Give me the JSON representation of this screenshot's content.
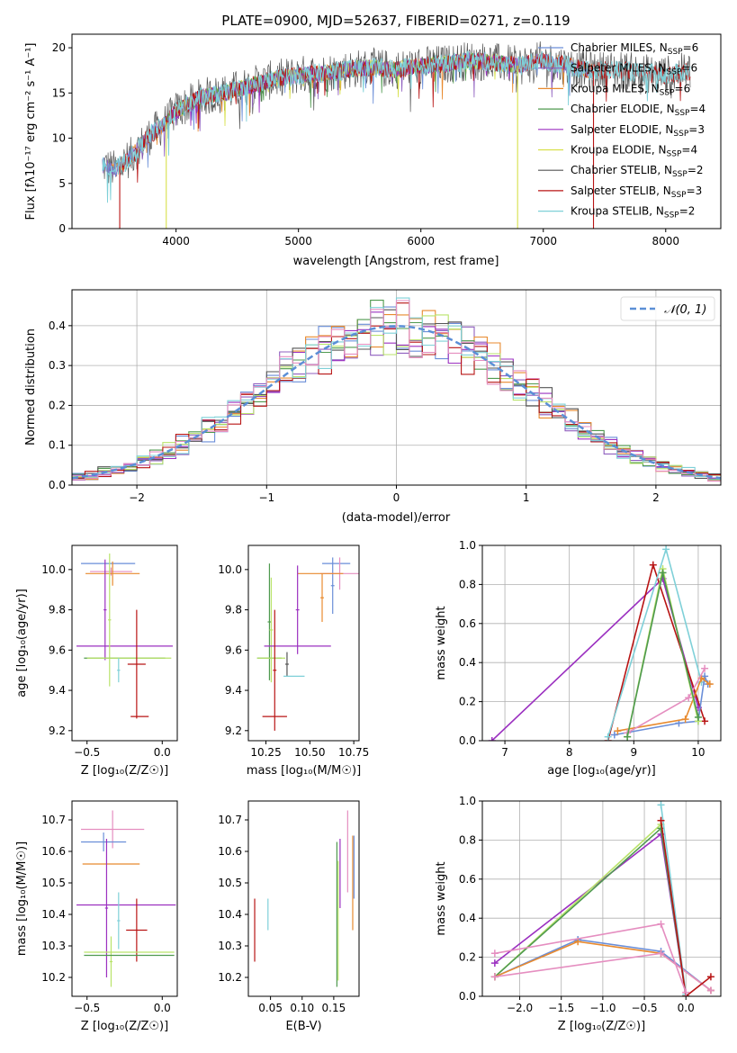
{
  "colors": {
    "chabrier_miles": "#6a8ed8",
    "salpeter_miles": "#8f5fbf",
    "kroupa_miles": "#e88a2e",
    "chabrier_elodie": "#4f9a4f",
    "salpeter_elodie": "#9b30c0",
    "kroupa_elodie": "#d7e04a",
    "chabrier_stelib": "#555555",
    "salpeter_stelib": "#b81414",
    "kroupa_stelib": "#7fd0d8",
    "gauss": "#5b8fd6",
    "pink": "#e58ec0",
    "lime": "#b9e36a"
  },
  "chart_data": [
    {
      "id": "spectrum",
      "type": "line",
      "title": "PLATE=0900, MJD=52637, FIBERID=0271, z=0.119",
      "xlabel": "wavelength [Angstrom, rest frame]",
      "ylabel": "Flux [fλ10⁻¹⁷ erg cm⁻² s⁻¹ A⁻¹]",
      "xlim": [
        3150,
        8450
      ],
      "ylim": [
        0,
        21.5
      ],
      "xticks": [
        4000,
        5000,
        6000,
        7000,
        8000
      ],
      "yticks": [
        0,
        5,
        10,
        15,
        20
      ],
      "legend": "upper right",
      "legend_entries": [
        {
          "label": "Chabrier MILES, N",
          "sub": "SSP",
          "suffix": "=6",
          "color_key": "chabrier_miles"
        },
        {
          "label": "Salpeter MILES, N",
          "sub": "SSP",
          "suffix": "=6",
          "color_key": "salpeter_miles"
        },
        {
          "label": "Kroupa MILES, N",
          "sub": "SSP",
          "suffix": "=6",
          "color_key": "kroupa_miles"
        },
        {
          "label": "Chabrier ELODIE, N",
          "sub": "SSP",
          "suffix": "=4",
          "color_key": "chabrier_elodie"
        },
        {
          "label": "Salpeter ELODIE, N",
          "sub": "SSP",
          "suffix": "=3",
          "color_key": "salpeter_elodie"
        },
        {
          "label": "Kroupa ELODIE, N",
          "sub": "SSP",
          "suffix": "=4",
          "color_key": "kroupa_elodie"
        },
        {
          "label": "Chabrier STELIB, N",
          "sub": "SSP",
          "suffix": "=2",
          "color_key": "chabrier_stelib"
        },
        {
          "label": "Salpeter STELIB, N",
          "sub": "SSP",
          "suffix": "=3",
          "color_key": "salpeter_stelib"
        },
        {
          "label": "Kroupa STELIB, N",
          "sub": "SSP",
          "suffix": "=2",
          "color_key": "kroupa_stelib"
        }
      ],
      "series_trend": {
        "x": [
          3400,
          3500,
          3600,
          3700,
          3800,
          3900,
          4000,
          4200,
          4400,
          4600,
          4800,
          5000,
          5200,
          5400,
          5600,
          5800,
          6000,
          6200,
          6400,
          6600,
          6800,
          7000,
          7200,
          7400,
          7600,
          7800,
          8000,
          8200
        ],
        "y": [
          7.0,
          6.5,
          7.5,
          9.0,
          10.5,
          11.5,
          13.0,
          14.5,
          15.0,
          15.8,
          16.5,
          17.0,
          17.2,
          17.6,
          17.8,
          17.6,
          18.0,
          18.2,
          18.6,
          18.4,
          18.0,
          18.6,
          18.0,
          17.4,
          17.6,
          17.2,
          17.0,
          17.4
        ]
      },
      "spikes": [
        {
          "x": 3540,
          "color_key": "salpeter_stelib"
        },
        {
          "x": 3920,
          "color_key": "kroupa_elodie"
        },
        {
          "x": 6790,
          "color_key": "kroupa_elodie"
        },
        {
          "x": 7410,
          "color_key": "salpeter_stelib"
        }
      ]
    },
    {
      "id": "residuals",
      "type": "step",
      "xlabel": "(data-model)/error",
      "ylabel": "Normed distribution",
      "xlim": [
        -2.5,
        2.5
      ],
      "ylim": [
        0,
        0.49
      ],
      "xticks": [
        -2,
        -1,
        0,
        1,
        2
      ],
      "xtick_labels": [
        "−2",
        "−1",
        "0",
        "1",
        "2"
      ],
      "yticks": [
        0.0,
        0.1,
        0.2,
        0.3,
        0.4
      ],
      "ytick_labels": [
        "0.0",
        "0.1",
        "0.2",
        "0.3",
        "0.4"
      ],
      "grid": true,
      "legend": "upper right",
      "legend_label": "𝒩(0, 1)",
      "bin_width": 0.1,
      "series_color_keys": [
        "chabrier_miles",
        "salpeter_miles",
        "kroupa_miles",
        "chabrier_elodie",
        "salpeter_elodie",
        "lime",
        "chabrier_stelib",
        "salpeter_stelib",
        "kroupa_stelib",
        "pink"
      ]
    },
    {
      "id": "age_vs_Z",
      "type": "errorbar",
      "xlabel": "Z [log₁₀(Z/Z☉)]",
      "ylabel": "age  [log₁₀(age/yr)]",
      "xlim": [
        -0.6,
        0.1
      ],
      "ylim": [
        9.15,
        10.12
      ],
      "xticks": [
        -0.5,
        0.0
      ],
      "xtick_labels": [
        "−0.5",
        "0.0"
      ],
      "yticks": [
        9.2,
        9.4,
        9.6,
        9.8,
        10.0
      ],
      "ytick_labels": [
        "9.2",
        "9.4",
        "9.6",
        "9.8",
        "10.0"
      ],
      "points": [
        {
          "x": -0.36,
          "xerr": 0.18,
          "y": 10.03,
          "yerr": 0.0,
          "color_key": "chabrier_miles"
        },
        {
          "x": -0.34,
          "xerr": 0.14,
          "y": 9.99,
          "yerr": 0.02,
          "color_key": "pink"
        },
        {
          "x": -0.33,
          "xerr": 0.18,
          "y": 9.98,
          "yerr": 0.06,
          "color_key": "kroupa_miles"
        },
        {
          "x": -0.38,
          "xerr": 0.01,
          "y": 9.8,
          "yerr": 0.25,
          "color_key": "salpeter_elodie"
        },
        {
          "x": -0.25,
          "xerr": 0.32,
          "y": 9.62,
          "yerr": 0.0,
          "color_key": "salpeter_elodie"
        },
        {
          "x": -0.35,
          "xerr": 0.01,
          "y": 9.75,
          "yerr": 0.33,
          "color_key": "lime"
        },
        {
          "x": -0.25,
          "xerr": 0.27,
          "y": 9.56,
          "yerr": 0.0,
          "color_key": "chabrier_elodie"
        },
        {
          "x": -0.22,
          "xerr": 0.28,
          "y": 9.56,
          "yerr": 0.0,
          "color_key": "lime"
        },
        {
          "x": -0.29,
          "xerr": 0.01,
          "y": 9.5,
          "yerr": 0.06,
          "color_key": "kroupa_stelib"
        },
        {
          "x": -0.17,
          "xerr": 0.06,
          "y": 9.53,
          "yerr": 0.27,
          "color_key": "salpeter_stelib"
        },
        {
          "x": -0.15,
          "xerr": 0.06,
          "y": 9.27,
          "yerr": 0.0,
          "color_key": "salpeter_stelib"
        }
      ]
    },
    {
      "id": "age_vs_mass",
      "type": "errorbar",
      "xlabel": "mass [log₁₀(M/M☉)]",
      "ylabel": "",
      "xlim": [
        10.15,
        10.78
      ],
      "ylim": [
        9.15,
        10.12
      ],
      "xticks": [
        10.25,
        10.5,
        10.75
      ],
      "xtick_labels": [
        "10.25",
        "10.50",
        "10.75"
      ],
      "yticks": [
        9.2,
        9.4,
        9.6,
        9.8,
        10.0
      ],
      "ytick_labels": [
        "9.2",
        "9.4",
        "9.6",
        "9.8",
        "10.0"
      ],
      "points": [
        {
          "x": 10.65,
          "xerr": 0.08,
          "y": 10.03,
          "yerr": 0.0,
          "color_key": "chabrier_miles"
        },
        {
          "x": 10.63,
          "xerr": 0.01,
          "y": 9.92,
          "yerr": 0.14,
          "color_key": "chabrier_miles"
        },
        {
          "x": 10.67,
          "xerr": 0.11,
          "y": 9.98,
          "yerr": 0.08,
          "color_key": "pink"
        },
        {
          "x": 10.56,
          "xerr": 0.13,
          "y": 9.98,
          "yerr": 0.0,
          "color_key": "kroupa_miles"
        },
        {
          "x": 10.57,
          "xerr": 0.01,
          "y": 9.86,
          "yerr": 0.12,
          "color_key": "kroupa_miles"
        },
        {
          "x": 10.27,
          "xerr": 0.01,
          "y": 9.74,
          "yerr": 0.29,
          "color_key": "chabrier_elodie"
        },
        {
          "x": 10.28,
          "xerr": 0.01,
          "y": 9.7,
          "yerr": 0.26,
          "color_key": "lime"
        },
        {
          "x": 10.43,
          "xerr": 0.01,
          "y": 9.8,
          "yerr": 0.22,
          "color_key": "salpeter_elodie"
        },
        {
          "x": 10.43,
          "xerr": 0.19,
          "y": 9.62,
          "yerr": 0.0,
          "color_key": "salpeter_elodie"
        },
        {
          "x": 10.27,
          "xerr": 0.07,
          "y": 9.56,
          "yerr": 0.0,
          "color_key": "chabrier_elodie"
        },
        {
          "x": 10.28,
          "xerr": 0.08,
          "y": 9.56,
          "yerr": 0.0,
          "color_key": "lime"
        },
        {
          "x": 10.37,
          "xerr": 0.01,
          "y": 9.53,
          "yerr": 0.06,
          "color_key": "chabrier_stelib"
        },
        {
          "x": 10.41,
          "xerr": 0.06,
          "y": 9.47,
          "yerr": 0.0,
          "color_key": "kroupa_stelib"
        },
        {
          "x": 10.3,
          "xerr": 0.01,
          "y": 9.5,
          "yerr": 0.3,
          "color_key": "salpeter_stelib"
        },
        {
          "x": 10.3,
          "xerr": 0.07,
          "y": 9.27,
          "yerr": 0.0,
          "color_key": "salpeter_stelib"
        }
      ]
    },
    {
      "id": "weight_vs_age",
      "type": "line",
      "xlabel": "age  [log₁₀(age/yr)]",
      "ylabel": "mass weight",
      "xlim": [
        6.65,
        10.35
      ],
      "ylim": [
        0,
        1.0
      ],
      "xticks": [
        7,
        8,
        9,
        10
      ],
      "xtick_labels": [
        "7",
        "8",
        "9",
        "10"
      ],
      "yticks": [
        0.0,
        0.2,
        0.4,
        0.6,
        0.8,
        1.0
      ],
      "ytick_labels": [
        "0.0",
        "0.2",
        "0.4",
        "0.6",
        "0.8",
        "1.0"
      ],
      "grid": true,
      "series": [
        {
          "color_key": "salpeter_elodie",
          "x": [
            6.8,
            9.45,
            10.0
          ],
          "y": [
            0.0,
            0.83,
            0.17
          ]
        },
        {
          "color_key": "salpeter_stelib",
          "x": [
            8.6,
            9.3,
            10.1
          ],
          "y": [
            0.0,
            0.9,
            0.1
          ]
        },
        {
          "color_key": "kroupa_stelib",
          "x": [
            8.6,
            9.5,
            10.05
          ],
          "y": [
            0.02,
            0.98,
            0.3
          ]
        },
        {
          "color_key": "chabrier_miles",
          "x": [
            8.7,
            9.7,
            10.0,
            10.1,
            10.15
          ],
          "y": [
            0.03,
            0.09,
            0.1,
            0.33,
            0.29
          ]
        },
        {
          "color_key": "kroupa_miles",
          "x": [
            8.75,
            9.8,
            10.05,
            10.18
          ],
          "y": [
            0.05,
            0.11,
            0.32,
            0.29
          ]
        },
        {
          "color_key": "pink",
          "x": [
            8.9,
            9.85,
            10.1
          ],
          "y": [
            0.04,
            0.22,
            0.37
          ]
        },
        {
          "color_key": "lime",
          "x": [
            8.9,
            9.45,
            10.0
          ],
          "y": [
            0.02,
            0.88,
            0.1
          ]
        },
        {
          "color_key": "chabrier_elodie",
          "x": [
            8.9,
            9.45,
            10.0
          ],
          "y": [
            0.02,
            0.86,
            0.12
          ]
        }
      ]
    },
    {
      "id": "mass_vs_Z",
      "type": "errorbar",
      "xlabel": "Z [log₁₀(Z/Z☉)]",
      "ylabel": "mass [log₁₀(M/M☉)]",
      "xlim": [
        -0.6,
        0.1
      ],
      "ylim": [
        10.14,
        10.76
      ],
      "xticks": [
        -0.5,
        0.0
      ],
      "xtick_labels": [
        "−0.5",
        "0.0"
      ],
      "yticks": [
        10.2,
        10.3,
        10.4,
        10.5,
        10.6,
        10.7
      ],
      "ytick_labels": [
        "10.2",
        "10.3",
        "10.4",
        "10.5",
        "10.6",
        "10.7"
      ],
      "points": [
        {
          "x": -0.33,
          "xerr": 0.21,
          "y": 10.67,
          "yerr": 0.06,
          "color_key": "pink"
        },
        {
          "x": -0.39,
          "xerr": 0.15,
          "y": 10.63,
          "yerr": 0.03,
          "color_key": "chabrier_miles"
        },
        {
          "x": -0.34,
          "xerr": 0.19,
          "y": 10.56,
          "yerr": 0.0,
          "color_key": "kroupa_miles"
        },
        {
          "x": -0.37,
          "xerr": 0.01,
          "y": 10.42,
          "yerr": 0.22,
          "color_key": "salpeter_elodie"
        },
        {
          "x": -0.24,
          "xerr": 0.33,
          "y": 10.43,
          "yerr": 0.0,
          "color_key": "salpeter_elodie"
        },
        {
          "x": -0.29,
          "xerr": 0.01,
          "y": 10.38,
          "yerr": 0.09,
          "color_key": "kroupa_stelib"
        },
        {
          "x": -0.17,
          "xerr": 0.07,
          "y": 10.35,
          "yerr": 0.1,
          "color_key": "salpeter_stelib"
        },
        {
          "x": -0.22,
          "xerr": 0.3,
          "y": 10.28,
          "yerr": 0.0,
          "color_key": "lime"
        },
        {
          "x": -0.34,
          "xerr": 0.01,
          "y": 10.25,
          "yerr": 0.08,
          "color_key": "lime"
        },
        {
          "x": -0.22,
          "xerr": 0.3,
          "y": 10.27,
          "yerr": 0.0,
          "color_key": "chabrier_elodie"
        }
      ]
    },
    {
      "id": "mass_vs_ebv",
      "type": "errorbar",
      "xlabel": "E(B-V)",
      "ylabel": "",
      "xlim": [
        0.015,
        0.19
      ],
      "ylim": [
        10.14,
        10.76
      ],
      "xticks": [
        0.05,
        0.1,
        0.15
      ],
      "xtick_labels": [
        "0.05",
        "0.10",
        "0.15"
      ],
      "yticks": [
        10.2,
        10.3,
        10.4,
        10.5,
        10.6,
        10.7
      ],
      "ytick_labels": [
        "10.2",
        "10.3",
        "10.4",
        "10.5",
        "10.6",
        "10.7"
      ],
      "points": [
        {
          "x": 0.025,
          "xerr": 0.0,
          "y": 10.35,
          "yerr": 0.1,
          "color_key": "salpeter_stelib"
        },
        {
          "x": 0.046,
          "xerr": 0.0,
          "y": 10.4,
          "yerr": 0.05,
          "color_key": "kroupa_stelib"
        },
        {
          "x": 0.155,
          "xerr": 0.0,
          "y": 10.4,
          "yerr": 0.23,
          "color_key": "chabrier_elodie"
        },
        {
          "x": 0.157,
          "xerr": 0.0,
          "y": 10.38,
          "yerr": 0.19,
          "color_key": "lime"
        },
        {
          "x": 0.16,
          "xerr": 0.0,
          "y": 10.53,
          "yerr": 0.11,
          "color_key": "salpeter_elodie"
        },
        {
          "x": 0.172,
          "xerr": 0.0,
          "y": 10.6,
          "yerr": 0.13,
          "color_key": "pink"
        },
        {
          "x": 0.18,
          "xerr": 0.0,
          "y": 10.5,
          "yerr": 0.15,
          "color_key": "kroupa_miles"
        },
        {
          "x": 0.182,
          "xerr": 0.0,
          "y": 10.55,
          "yerr": 0.1,
          "color_key": "chabrier_miles"
        }
      ]
    },
    {
      "id": "weight_vs_Z",
      "type": "line",
      "xlabel": "Z [log₁₀(Z/Z☉)]",
      "ylabel": "mass weight",
      "xlim": [
        -2.45,
        0.42
      ],
      "ylim": [
        0,
        1.0
      ],
      "xticks": [
        -2.0,
        -1.5,
        -1.0,
        -0.5,
        0.0
      ],
      "xtick_labels": [
        "−2.0",
        "−1.5",
        "−1.0",
        "−0.5",
        "0.0"
      ],
      "yticks": [
        0.0,
        0.2,
        0.4,
        0.6,
        0.8,
        1.0
      ],
      "ytick_labels": [
        "0.0",
        "0.2",
        "0.4",
        "0.6",
        "0.8",
        "1.0"
      ],
      "grid": true,
      "series": [
        {
          "color_key": "salpeter_elodie",
          "x": [
            -2.3,
            -0.3,
            0.0
          ],
          "y": [
            0.17,
            0.83,
            0.0
          ]
        },
        {
          "color_key": "lime",
          "x": [
            -2.3,
            -0.3,
            0.0
          ],
          "y": [
            0.1,
            0.88,
            0.0
          ]
        },
        {
          "color_key": "chabrier_elodie",
          "x": [
            -2.3,
            -0.3,
            0.0
          ],
          "y": [
            0.1,
            0.86,
            0.0
          ]
        },
        {
          "color_key": "chabrier_miles",
          "x": [
            -2.3,
            -1.3,
            -0.3,
            0.3
          ],
          "y": [
            0.1,
            0.29,
            0.23,
            0.03
          ]
        },
        {
          "color_key": "kroupa_miles",
          "x": [
            -2.3,
            -1.3,
            -0.3,
            0.3
          ],
          "y": [
            0.1,
            0.28,
            0.22,
            0.03
          ]
        },
        {
          "color_key": "pink",
          "x": [
            -2.3,
            -0.3,
            0.3
          ],
          "y": [
            0.1,
            0.22,
            0.03
          ]
        },
        {
          "color_key": "kroupa_stelib",
          "x": [
            -0.3,
            0.0
          ],
          "y": [
            0.98,
            0.01
          ]
        },
        {
          "color_key": "salpeter_stelib",
          "x": [
            -0.3,
            0.0,
            0.3
          ],
          "y": [
            0.9,
            0.0,
            0.1
          ]
        },
        {
          "color_key": "pink",
          "x": [
            -2.3,
            -0.3,
            0.0
          ],
          "y": [
            0.22,
            0.37,
            0.02
          ]
        }
      ]
    }
  ]
}
